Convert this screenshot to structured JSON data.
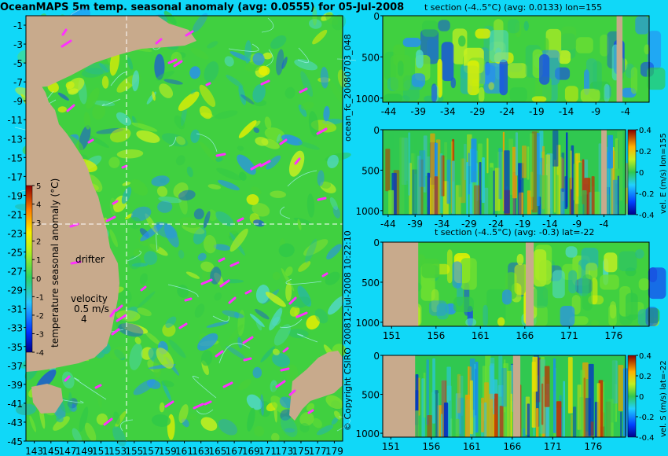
{
  "title": "OceanMAPS 5m temp. seasonal anomaly (avg: 0.0555) for 05-Jul-2008",
  "colors": {
    "background": "#10d8f8",
    "land": "#c8aa8c",
    "drifter": "#ff30ff",
    "contour": "#a0f0f0"
  },
  "annotations": {
    "drifter": "drifter",
    "velocity": "velocity",
    "velocity_scale": "0.5 m/s",
    "velocity_value": "4",
    "forecast_id": "ocean_fc_20080703_048",
    "run_date": "12-Jul-2008 10:22:10",
    "copyright": "© Copyright CSIRO 2008"
  },
  "chart_data": [
    {
      "type": "heatmap",
      "name": "map",
      "xlabel": "",
      "ylabel": "",
      "x_ticks": [
        "143",
        "145",
        "147",
        "149",
        "151",
        "153",
        "155",
        "157",
        "159",
        "161",
        "163",
        "165",
        "167",
        "169",
        "171",
        "173",
        "175",
        "177",
        "179"
      ],
      "y_ticks": [
        "-1",
        "-3",
        "-5",
        "-7",
        "-9",
        "-11",
        "-13",
        "-15",
        "-17",
        "-19",
        "-21",
        "-23",
        "-25",
        "-27",
        "-29",
        "-31",
        "-33",
        "-35",
        "-37",
        "-39",
        "-41",
        "-43",
        "-45"
      ],
      "xlim": [
        142,
        180
      ],
      "ylim": [
        -45,
        0
      ],
      "section_lines": {
        "lon": 155,
        "lat": -22
      },
      "colorbar": {
        "label": "temperature seasonal anomaly (°C)",
        "ticks": [
          "5",
          "4",
          "3",
          "2",
          "1",
          "0",
          "-1",
          "-2",
          "-3",
          "-4"
        ],
        "range": [
          -4,
          5
        ]
      }
    },
    {
      "type": "heatmap",
      "name": "t-section-lon",
      "title": "t section (-4..5°C) (avg: 0.0133) lon=155",
      "x_ticks": [
        "-44",
        "-39",
        "-34",
        "-29",
        "-24",
        "-19",
        "-14",
        "-9",
        "-4"
      ],
      "y_ticks": [
        "0",
        "500",
        "1000"
      ],
      "xlim": [
        -45,
        0
      ],
      "ylim": [
        1050,
        0
      ]
    },
    {
      "type": "heatmap",
      "name": "vel-e-section",
      "x_ticks": [
        "-44",
        "-39",
        "-34",
        "-29",
        "-24",
        "-19",
        "-14",
        "-9",
        "-4"
      ],
      "y_ticks": [
        "0",
        "500",
        "1000"
      ],
      "xlim": [
        -45,
        0
      ],
      "ylim": [
        1050,
        0
      ],
      "colorbar": {
        "label": "vel. E (m/s) lon=155",
        "ticks": [
          "0.4",
          "0.2",
          "0",
          "-0.2",
          "-0.4"
        ],
        "range": [
          -0.4,
          0.4
        ]
      }
    },
    {
      "type": "heatmap",
      "name": "t-section-lat",
      "title": "t section (-4..5°C) (avg: -0.3) lat=-22",
      "x_ticks": [
        "151",
        "156",
        "161",
        "166",
        "171",
        "176"
      ],
      "y_ticks": [
        "0",
        "500",
        "1000"
      ],
      "xlim": [
        150,
        180
      ],
      "ylim": [
        1050,
        0
      ]
    },
    {
      "type": "heatmap",
      "name": "vel-s-section",
      "x_ticks": [
        "151",
        "156",
        "161",
        "166",
        "171",
        "176"
      ],
      "y_ticks": [
        "0",
        "500",
        "1000"
      ],
      "xlim": [
        150,
        180
      ],
      "ylim": [
        1050,
        0
      ],
      "colorbar": {
        "label": "vel. S (m/s) lat=-22",
        "ticks": [
          "0.4",
          "0.2",
          "0",
          "-0.2",
          "-0.4"
        ],
        "range": [
          -0.4,
          0.4
        ]
      }
    }
  ]
}
